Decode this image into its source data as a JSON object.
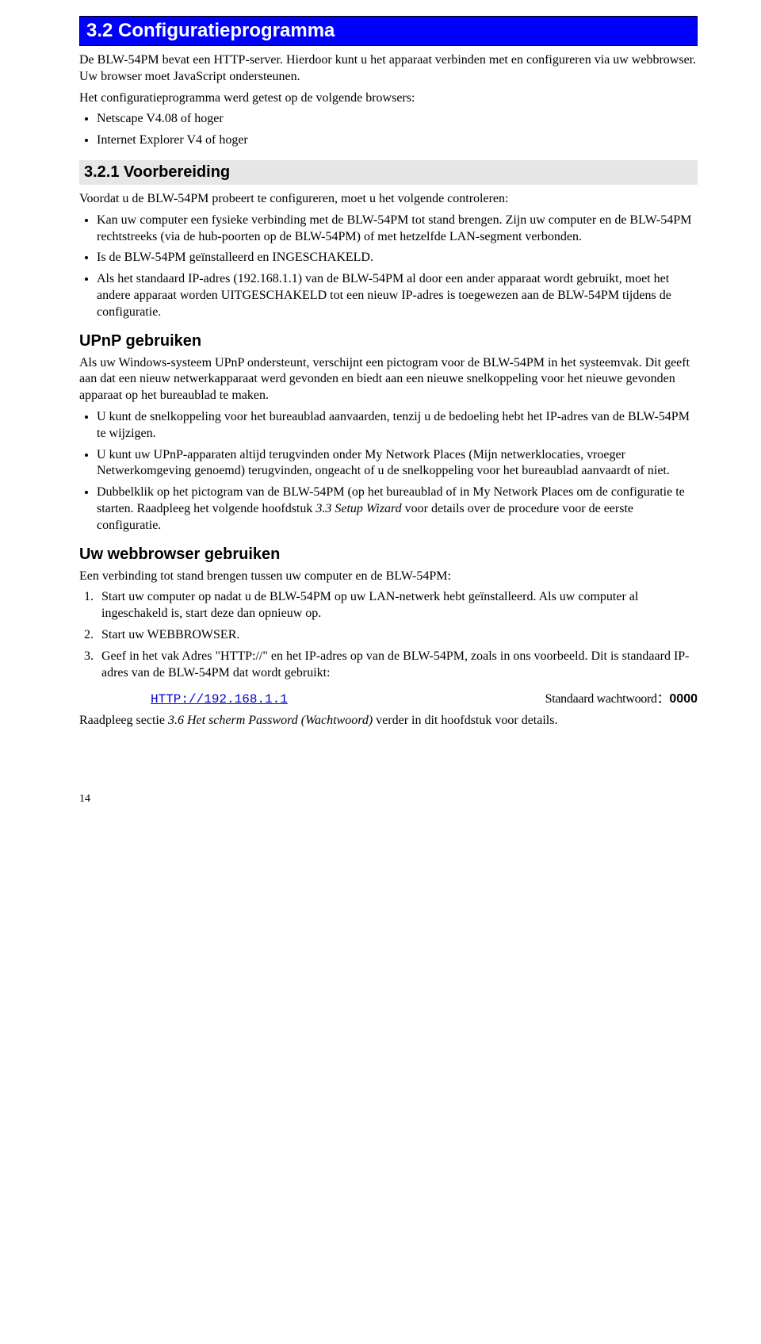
{
  "section_title": "3.2 Configuratieprogramma",
  "intro_p1": "De BLW-54PM bevat een HTTP-server. Hierdoor kunt u het apparaat verbinden met en configureren via uw webbrowser. Uw browser moet JavaScript ondersteunen.",
  "intro_p2": "Het configuratieprogramma werd getest op de volgende browsers:",
  "intro_bullets": [
    "Netscape V4.08 of hoger",
    "Internet Explorer V4 of hoger"
  ],
  "sub1_title": "3.2.1 Voorbereiding",
  "sub1_p1": "Voordat u de BLW-54PM probeert te configureren, moet u het volgende controleren:",
  "sub1_bullets": [
    "Kan uw computer een fysieke verbinding met de BLW-54PM tot stand brengen. Zijn uw computer en de BLW-54PM rechtstreeks (via de hub-poorten op de BLW-54PM) of met hetzelfde LAN-segment verbonden.",
    "Is de BLW-54PM geïnstalleerd en INGESCHAKELD.",
    "Als het standaard IP-adres (192.168.1.1) van de BLW-54PM al door een ander apparaat wordt gebruikt, moet het andere apparaat worden UITGESCHAKELD tot een nieuw IP-adres is toegewezen aan de BLW-54PM tijdens de configuratie."
  ],
  "upnp_title": "UPnP gebruiken",
  "upnp_p1": "Als uw Windows-systeem UPnP ondersteunt, verschijnt een pictogram voor de BLW-54PM in het systeemvak. Dit geeft aan dat een nieuw netwerkapparaat werd gevonden en biedt aan een nieuwe snelkoppeling voor het nieuwe gevonden apparaat op het bureaublad te maken.",
  "upnp_bullets": [
    "U kunt de snelkoppeling voor het bureaublad aanvaarden, tenzij u de bedoeling hebt het IP-adres van de BLW-54PM te wijzigen.",
    "U kunt uw UPnP-apparaten altijd terugvinden onder My Network Places (Mijn netwerklocaties, vroeger Netwerkomgeving genoemd) terugvinden, ongeacht of u de snelkoppeling voor het bureaublad aanvaardt of niet."
  ],
  "upnp_bullet3_pre": "Dubbelklik op het pictogram van de BLW-54PM (op het bureaublad of in My Network Places om de configuratie te starten. Raadpleeg het volgende hoofdstuk ",
  "upnp_bullet3_italic": "3.3 Setup Wizard",
  "upnp_bullet3_post": " voor details over de procedure voor de eerste configuratie.",
  "browser_title": "Uw webbrowser gebruiken",
  "browser_p1": "Een verbinding tot stand brengen tussen uw computer en de BLW-54PM:",
  "browser_steps": [
    "Start uw computer op nadat u de BLW-54PM op uw LAN-netwerk hebt geïnstalleerd. Als uw computer al ingeschakeld is, start deze dan opnieuw op.",
    "Start uw WEBBROWSER.",
    "Geef in het vak Adres \"HTTP://\" en het IP-adres op van de BLW-54PM, zoals in ons voorbeeld. Dit is standaard IP-adres van de BLW-54PM dat wordt gebruikt:"
  ],
  "url_text": "HTTP://192.168.1.1",
  "pw_label": "Standaard wachtwoord：",
  "pw_value": "0000",
  "closing_pre": "Raadpleeg sectie ",
  "closing_italic": "3.6 Het scherm Password (Wachtwoord)",
  "closing_post": " verder in dit hoofdstuk voor details.",
  "page_number": "14"
}
